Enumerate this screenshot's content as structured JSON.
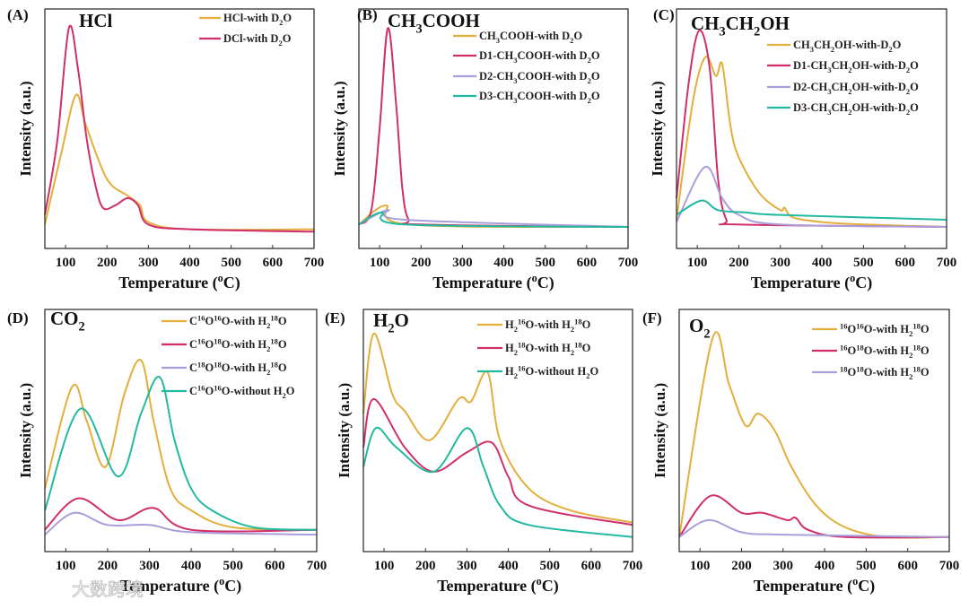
{
  "colors": {
    "orange": "#E3AE3C",
    "pink": "#D12E6C",
    "lavender": "#A99EDB",
    "teal": "#22B9A0"
  },
  "watermark": "大数跨境",
  "chart_data": [
    {
      "type": "line",
      "panel": "(A)",
      "title": "HCl",
      "xlabel": "Temperature (^{o}C)",
      "ylabel": "Intensity (a.u.)",
      "xlim": [
        50,
        700
      ],
      "ylim": [
        0,
        100
      ],
      "xticks": [
        100,
        200,
        300,
        400,
        500,
        600,
        700
      ],
      "series": [
        {
          "name": "HCl-with D_{2}O",
          "color": "orange",
          "points": [
            [
              50,
              10
            ],
            [
              90,
              40
            ],
            [
              125,
              64
            ],
            [
              150,
              51
            ],
            [
              200,
              29
            ],
            [
              250,
              22
            ],
            [
              280,
              18
            ],
            [
              300,
              11
            ],
            [
              400,
              8
            ],
            [
              700,
              8
            ]
          ]
        },
        {
          "name": "DCl-with D_{2}O",
          "color": "pink",
          "points": [
            [
              50,
              14
            ],
            [
              80,
              45
            ],
            [
              108,
              92
            ],
            [
              130,
              75
            ],
            [
              150,
              47
            ],
            [
              170,
              28
            ],
            [
              190,
              17
            ],
            [
              220,
              18
            ],
            [
              250,
              21
            ],
            [
              275,
              18
            ],
            [
              300,
              10
            ],
            [
              400,
              8
            ],
            [
              700,
              7
            ]
          ]
        }
      ]
    },
    {
      "type": "line",
      "panel": "(B)",
      "title": "CH_{3}COOH",
      "xlabel": "Temperature (^{o}C)",
      "ylabel": "Intensity (a.u.)",
      "xlim": [
        50,
        700
      ],
      "ylim": [
        0,
        100
      ],
      "xticks": [
        100,
        200,
        300,
        400,
        500,
        600,
        700
      ],
      "series": [
        {
          "name": "CH_{3}COOH-with D_{2}O",
          "color": "orange",
          "points": [
            [
              50,
              10
            ],
            [
              115,
              18
            ],
            [
              170,
              10
            ],
            [
              700,
              9
            ]
          ]
        },
        {
          "name": "D1-CH_{3}COOH-with D_{2}O",
          "color": "pink",
          "points": [
            [
              50,
              10
            ],
            [
              80,
              16
            ],
            [
              100,
              50
            ],
            [
              120,
              92
            ],
            [
              140,
              60
            ],
            [
              155,
              25
            ],
            [
              170,
              12
            ],
            [
              200,
              10
            ],
            [
              700,
              9
            ]
          ]
        },
        {
          "name": "D2-CH_{3}COOH-with D_{2}O",
          "color": "lavender",
          "points": [
            [
              50,
              10
            ],
            [
              120,
              16
            ],
            [
              160,
              12
            ],
            [
              700,
              9
            ]
          ]
        },
        {
          "name": "D3-CH_{3}COOH-with D_{2}O",
          "color": "teal",
          "points": [
            [
              50,
              10
            ],
            [
              105,
              15
            ],
            [
              160,
              10
            ],
            [
              700,
              9
            ]
          ]
        }
      ]
    },
    {
      "type": "line",
      "panel": "(C)",
      "title": "CH_{3}CH_{2}OH",
      "xlabel": "Temperature (^{o}C)",
      "ylabel": "Intensity (a.u.)",
      "xlim": [
        50,
        700
      ],
      "ylim": [
        0,
        100
      ],
      "xticks": [
        100,
        200,
        300,
        400,
        500,
        600,
        700
      ],
      "series": [
        {
          "name": "CH_{3}CH_{2}OH-with-D_{2}O",
          "color": "orange",
          "points": [
            [
              50,
              12
            ],
            [
              90,
              62
            ],
            [
              120,
              80
            ],
            [
              145,
              72
            ],
            [
              160,
              77
            ],
            [
              180,
              51
            ],
            [
              200,
              38
            ],
            [
              250,
              23
            ],
            [
              300,
              16
            ],
            [
              310,
              17
            ],
            [
              330,
              13
            ],
            [
              400,
              11
            ],
            [
              500,
              10
            ],
            [
              700,
              9
            ]
          ]
        },
        {
          "name": "D1-CH_{3}CH_{2}OH-with-D_{2}O",
          "color": "pink",
          "points": [
            [
              50,
              21
            ],
            [
              80,
              70
            ],
            [
              105,
              91
            ],
            [
              130,
              75
            ],
            [
              150,
              29
            ],
            [
              170,
              12
            ],
            [
              200,
              10
            ],
            [
              700,
              9
            ]
          ]
        },
        {
          "name": "D2-CH_{3}CH_{2}OH-with-D_{2}O",
          "color": "lavender",
          "points": [
            [
              50,
              11
            ],
            [
              118,
              34
            ],
            [
              160,
              21
            ],
            [
              200,
              14
            ],
            [
              300,
              10
            ],
            [
              700,
              9
            ]
          ]
        },
        {
          "name": "D3-CH_{3}CH_{2}OH-with-D_{2}O",
          "color": "teal",
          "points": [
            [
              50,
              14
            ],
            [
              110,
              20
            ],
            [
              150,
              16
            ],
            [
              220,
              15
            ],
            [
              300,
              14
            ],
            [
              700,
              12
            ]
          ]
        }
      ]
    },
    {
      "type": "line",
      "panel": "(D)",
      "title": "CO_{2}",
      "xlabel": "Temperature (^{o}C)",
      "ylabel": "Intensity (a.u.)",
      "xlim": [
        50,
        700
      ],
      "ylim": [
        0,
        100
      ],
      "xticks": [
        100,
        200,
        300,
        400,
        500,
        600,
        700
      ],
      "series": [
        {
          "name": "C^{16}O^{16}O-with H_{2}^{18}O",
          "color": "orange",
          "points": [
            [
              50,
              26
            ],
            [
              115,
              68
            ],
            [
              150,
              54
            ],
            [
              195,
              35
            ],
            [
              240,
              65
            ],
            [
              280,
              79
            ],
            [
              310,
              54
            ],
            [
              350,
              26
            ],
            [
              400,
              17
            ],
            [
              500,
              10
            ],
            [
              700,
              9
            ]
          ]
        },
        {
          "name": "C^{16}O^{18}O-with H_{2}^{18}O",
          "color": "pink",
          "points": [
            [
              50,
              9
            ],
            [
              130,
              22
            ],
            [
              225,
              13
            ],
            [
              310,
              18
            ],
            [
              400,
              9
            ],
            [
              700,
              9
            ]
          ]
        },
        {
          "name": "C^{18}O^{18}O-with H_{2}^{18}O",
          "color": "lavender",
          "points": [
            [
              50,
              7
            ],
            [
              120,
              16
            ],
            [
              200,
              11
            ],
            [
              300,
              11
            ],
            [
              400,
              8
            ],
            [
              700,
              7
            ]
          ]
        },
        {
          "name": "C^{16}O^{16}O-without H_{2}O",
          "color": "teal",
          "points": [
            [
              50,
              17
            ],
            [
              135,
              59
            ],
            [
              225,
              31
            ],
            [
              280,
              57
            ],
            [
              325,
              72
            ],
            [
              360,
              46
            ],
            [
              400,
              26
            ],
            [
              450,
              17
            ],
            [
              550,
              10
            ],
            [
              700,
              9
            ]
          ]
        }
      ]
    },
    {
      "type": "line",
      "panel": "(E)",
      "title": "H_{2}O",
      "xlabel": "Temperature (^{o}C)",
      "ylabel": "Intensity (a.u.)",
      "xlim": [
        50,
        700
      ],
      "ylim": [
        0,
        100
      ],
      "xticks": [
        100,
        200,
        300,
        400,
        500,
        600,
        700
      ],
      "series": [
        {
          "name": "H_{2}^{16}O-with H_{2}^{18}O",
          "color": "orange",
          "points": [
            [
              50,
              57
            ],
            [
              75,
              90
            ],
            [
              120,
              65
            ],
            [
              150,
              58
            ],
            [
              210,
              46
            ],
            [
              280,
              63
            ],
            [
              310,
              62
            ],
            [
              350,
              74
            ],
            [
              380,
              46
            ],
            [
              450,
              26
            ],
            [
              550,
              17
            ],
            [
              700,
              12
            ]
          ]
        },
        {
          "name": "H_{2}^{18}O-with H_{2}^{18}O",
          "color": "pink",
          "points": [
            [
              50,
              43
            ],
            [
              75,
              63
            ],
            [
              150,
              43
            ],
            [
              220,
              33
            ],
            [
              300,
              41
            ],
            [
              360,
              45
            ],
            [
              400,
              31
            ],
            [
              450,
              19
            ],
            [
              700,
              11
            ]
          ]
        },
        {
          "name": "H_{2}^{16}O-without H_{2}O",
          "color": "teal",
          "points": [
            [
              50,
              35
            ],
            [
              80,
              51
            ],
            [
              130,
              43
            ],
            [
              220,
              33
            ],
            [
              300,
              51
            ],
            [
              340,
              35
            ],
            [
              380,
              19
            ],
            [
              450,
              11
            ],
            [
              700,
              6
            ]
          ]
        }
      ]
    },
    {
      "type": "line",
      "panel": "(F)",
      "title": "O_{2}",
      "xlabel": "Temperature (^{o}C)",
      "ylabel": "Intensity (a.u.)",
      "xlim": [
        50,
        700
      ],
      "ylim": [
        0,
        100
      ],
      "xticks": [
        100,
        200,
        300,
        400,
        500,
        600,
        700
      ],
      "series": [
        {
          "name": "^{16}O^{16}O-with H_{2}^{18}O",
          "color": "orange",
          "points": [
            [
              50,
              6
            ],
            [
              130,
              88
            ],
            [
              170,
              69
            ],
            [
              210,
              52
            ],
            [
              240,
              57
            ],
            [
              280,
              50
            ],
            [
              320,
              35
            ],
            [
              380,
              19
            ],
            [
              450,
              10
            ],
            [
              550,
              6
            ],
            [
              700,
              6
            ]
          ]
        },
        {
          "name": "^{16}O^{18}O-with H_{2}^{18}O",
          "color": "pink",
          "points": [
            [
              50,
              6
            ],
            [
              125,
              23
            ],
            [
              200,
              16
            ],
            [
              250,
              16
            ],
            [
              310,
              13
            ],
            [
              330,
              14
            ],
            [
              360,
              9
            ],
            [
              450,
              6
            ],
            [
              700,
              6
            ]
          ]
        },
        {
          "name": "^{18}O^{18}O-with H_{2}^{18}O",
          "color": "lavender",
          "points": [
            [
              50,
              6
            ],
            [
              120,
              13
            ],
            [
              200,
              8
            ],
            [
              300,
              7
            ],
            [
              700,
              6
            ]
          ]
        }
      ]
    }
  ]
}
